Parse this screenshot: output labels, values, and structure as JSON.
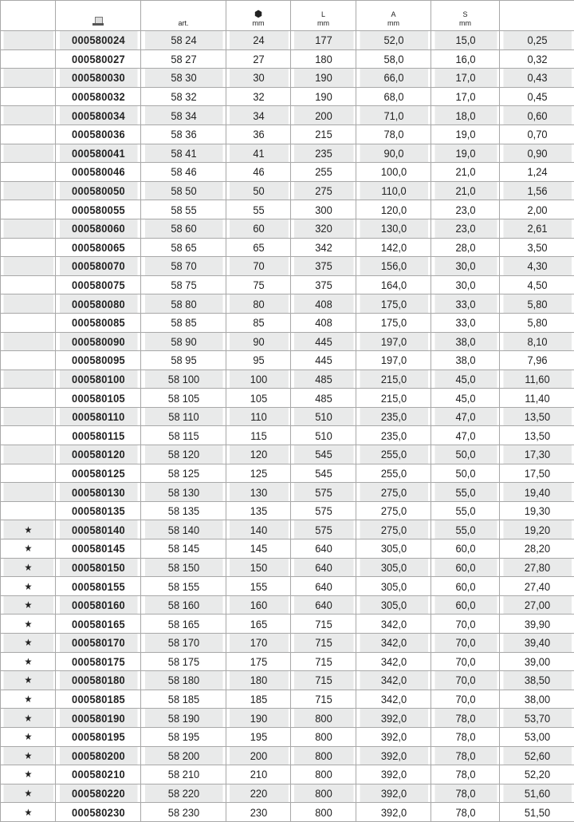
{
  "header": {
    "col_star": "",
    "col_code_icon": "computer-icon",
    "col_art": "art.",
    "col_size_icon": "socket-nut-icon",
    "col_size_unit": "mm",
    "col_L": "L",
    "col_L_unit": "mm",
    "col_A": "A",
    "col_A_unit": "mm",
    "col_S": "S",
    "col_S_unit": "mm",
    "col_weight": ""
  },
  "colors": {
    "row_shade": "#e9eaea",
    "border": "#a8a8a8"
  },
  "rows": [
    [
      "",
      "000580024",
      "58 24",
      "24",
      "177",
      "52,0",
      "15,0",
      "0,25"
    ],
    [
      "",
      "000580027",
      "58 27",
      "27",
      "180",
      "58,0",
      "16,0",
      "0,32"
    ],
    [
      "",
      "000580030",
      "58 30",
      "30",
      "190",
      "66,0",
      "17,0",
      "0,43"
    ],
    [
      "",
      "000580032",
      "58 32",
      "32",
      "190",
      "68,0",
      "17,0",
      "0,45"
    ],
    [
      "",
      "000580034",
      "58 34",
      "34",
      "200",
      "71,0",
      "18,0",
      "0,60"
    ],
    [
      "",
      "000580036",
      "58 36",
      "36",
      "215",
      "78,0",
      "19,0",
      "0,70"
    ],
    [
      "",
      "000580041",
      "58 41",
      "41",
      "235",
      "90,0",
      "19,0",
      "0,90"
    ],
    [
      "",
      "000580046",
      "58 46",
      "46",
      "255",
      "100,0",
      "21,0",
      "1,24"
    ],
    [
      "",
      "000580050",
      "58 50",
      "50",
      "275",
      "110,0",
      "21,0",
      "1,56"
    ],
    [
      "",
      "000580055",
      "58 55",
      "55",
      "300",
      "120,0",
      "23,0",
      "2,00"
    ],
    [
      "",
      "000580060",
      "58 60",
      "60",
      "320",
      "130,0",
      "23,0",
      "2,61"
    ],
    [
      "",
      "000580065",
      "58 65",
      "65",
      "342",
      "142,0",
      "28,0",
      "3,50"
    ],
    [
      "",
      "000580070",
      "58 70",
      "70",
      "375",
      "156,0",
      "30,0",
      "4,30"
    ],
    [
      "",
      "000580075",
      "58 75",
      "75",
      "375",
      "164,0",
      "30,0",
      "4,50"
    ],
    [
      "",
      "000580080",
      "58 80",
      "80",
      "408",
      "175,0",
      "33,0",
      "5,80"
    ],
    [
      "",
      "000580085",
      "58 85",
      "85",
      "408",
      "175,0",
      "33,0",
      "5,80"
    ],
    [
      "",
      "000580090",
      "58 90",
      "90",
      "445",
      "197,0",
      "38,0",
      "8,10"
    ],
    [
      "",
      "000580095",
      "58 95",
      "95",
      "445",
      "197,0",
      "38,0",
      "7,96"
    ],
    [
      "",
      "000580100",
      "58 100",
      "100",
      "485",
      "215,0",
      "45,0",
      "11,60"
    ],
    [
      "",
      "000580105",
      "58 105",
      "105",
      "485",
      "215,0",
      "45,0",
      "11,40"
    ],
    [
      "",
      "000580110",
      "58 110",
      "110",
      "510",
      "235,0",
      "47,0",
      "13,50"
    ],
    [
      "",
      "000580115",
      "58 115",
      "115",
      "510",
      "235,0",
      "47,0",
      "13,50"
    ],
    [
      "",
      "000580120",
      "58 120",
      "120",
      "545",
      "255,0",
      "50,0",
      "17,30"
    ],
    [
      "",
      "000580125",
      "58 125",
      "125",
      "545",
      "255,0",
      "50,0",
      "17,50"
    ],
    [
      "",
      "000580130",
      "58 130",
      "130",
      "575",
      "275,0",
      "55,0",
      "19,40"
    ],
    [
      "",
      "000580135",
      "58 135",
      "135",
      "575",
      "275,0",
      "55,0",
      "19,30"
    ],
    [
      "★",
      "000580140",
      "58 140",
      "140",
      "575",
      "275,0",
      "55,0",
      "19,20"
    ],
    [
      "★",
      "000580145",
      "58 145",
      "145",
      "640",
      "305,0",
      "60,0",
      "28,20"
    ],
    [
      "★",
      "000580150",
      "58 150",
      "150",
      "640",
      "305,0",
      "60,0",
      "27,80"
    ],
    [
      "★",
      "000580155",
      "58 155",
      "155",
      "640",
      "305,0",
      "60,0",
      "27,40"
    ],
    [
      "★",
      "000580160",
      "58 160",
      "160",
      "640",
      "305,0",
      "60,0",
      "27,00"
    ],
    [
      "★",
      "000580165",
      "58 165",
      "165",
      "715",
      "342,0",
      "70,0",
      "39,90"
    ],
    [
      "★",
      "000580170",
      "58 170",
      "170",
      "715",
      "342,0",
      "70,0",
      "39,40"
    ],
    [
      "★",
      "000580175",
      "58 175",
      "175",
      "715",
      "342,0",
      "70,0",
      "39,00"
    ],
    [
      "★",
      "000580180",
      "58 180",
      "180",
      "715",
      "342,0",
      "70,0",
      "38,50"
    ],
    [
      "★",
      "000580185",
      "58 185",
      "185",
      "715",
      "342,0",
      "70,0",
      "38,00"
    ],
    [
      "★",
      "000580190",
      "58 190",
      "190",
      "800",
      "392,0",
      "78,0",
      "53,70"
    ],
    [
      "★",
      "000580195",
      "58 195",
      "195",
      "800",
      "392,0",
      "78,0",
      "53,00"
    ],
    [
      "★",
      "000580200",
      "58 200",
      "200",
      "800",
      "392,0",
      "78,0",
      "52,60"
    ],
    [
      "★",
      "000580210",
      "58 210",
      "210",
      "800",
      "392,0",
      "78,0",
      "52,20"
    ],
    [
      "★",
      "000580220",
      "58 220",
      "220",
      "800",
      "392,0",
      "78,0",
      "51,60"
    ],
    [
      "★",
      "000580230",
      "58 230",
      "230",
      "800",
      "392,0",
      "78,0",
      "51,50"
    ]
  ]
}
